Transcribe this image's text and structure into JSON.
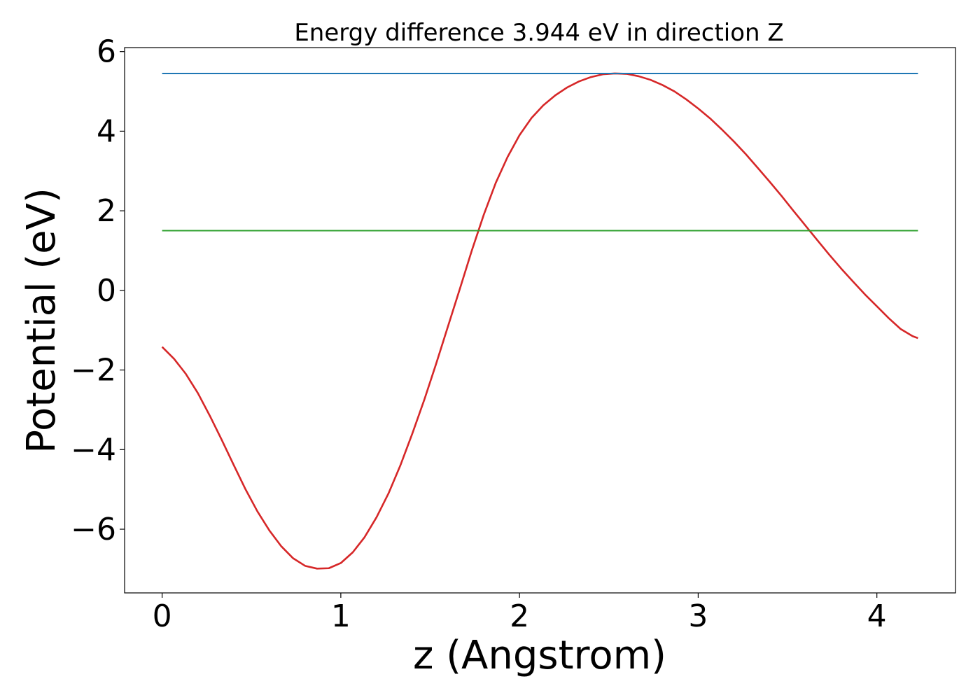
{
  "chart_data": {
    "type": "line",
    "title": "Energy difference 3.944 eV in direction Z",
    "xlabel": "z (Angstrom)",
    "ylabel": "Potential (eV)",
    "xlim": [
      -0.21,
      4.44
    ],
    "ylim": [
      -7.6,
      6.1
    ],
    "xticks": [
      0,
      1,
      2,
      3,
      4
    ],
    "xtick_labels": [
      "0",
      "1",
      "2",
      "3",
      "4"
    ],
    "yticks": [
      -6,
      -4,
      -2,
      0,
      2,
      4,
      6
    ],
    "ytick_labels": [
      "−6",
      "−4",
      "−2",
      "0",
      "2",
      "4",
      "6"
    ],
    "grid": false,
    "series": [
      {
        "color": "#d62728",
        "x": [
          0.0,
          0.067,
          0.133,
          0.2,
          0.267,
          0.333,
          0.4,
          0.467,
          0.533,
          0.6,
          0.667,
          0.733,
          0.8,
          0.867,
          0.933,
          1.0,
          1.067,
          1.133,
          1.2,
          1.267,
          1.333,
          1.4,
          1.467,
          1.533,
          1.6,
          1.667,
          1.733,
          1.8,
          1.867,
          1.933,
          2.0,
          2.067,
          2.133,
          2.2,
          2.267,
          2.333,
          2.4,
          2.467,
          2.533,
          2.6,
          2.667,
          2.733,
          2.8,
          2.867,
          2.933,
          3.0,
          3.067,
          3.133,
          3.2,
          3.267,
          3.333,
          3.4,
          3.467,
          3.533,
          3.6,
          3.667,
          3.733,
          3.8,
          3.867,
          3.933,
          4.0,
          4.067,
          4.133,
          4.2,
          4.23
        ],
        "y": [
          -1.42,
          -1.72,
          -2.1,
          -2.58,
          -3.15,
          -3.75,
          -4.38,
          -5.0,
          -5.55,
          -6.03,
          -6.43,
          -6.73,
          -6.92,
          -6.99,
          -6.98,
          -6.85,
          -6.58,
          -6.2,
          -5.7,
          -5.1,
          -4.4,
          -3.6,
          -2.75,
          -1.85,
          -0.9,
          0.05,
          1.0,
          1.9,
          2.7,
          3.35,
          3.9,
          4.33,
          4.65,
          4.9,
          5.1,
          5.25,
          5.36,
          5.43,
          5.45,
          5.44,
          5.38,
          5.29,
          5.16,
          5.0,
          4.8,
          4.57,
          4.32,
          4.04,
          3.74,
          3.42,
          3.08,
          2.73,
          2.37,
          2.0,
          1.63,
          1.26,
          0.9,
          0.55,
          0.22,
          -0.1,
          -0.4,
          -0.7,
          -0.97,
          -1.15,
          -1.2
        ]
      },
      {
        "color": "#1f77b4",
        "x": [
          0.0,
          4.23
        ],
        "y": [
          5.45,
          5.45
        ]
      },
      {
        "color": "#2ca02c",
        "x": [
          0.0,
          4.23
        ],
        "y": [
          1.5,
          1.5
        ]
      }
    ]
  }
}
